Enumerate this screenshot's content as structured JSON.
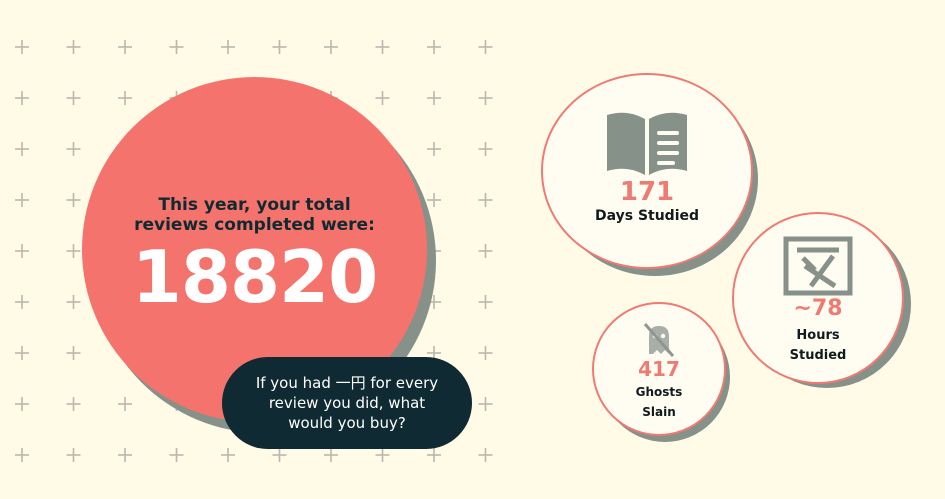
{
  "colors": {
    "background": "#fffbe6",
    "accent": "#f4736d",
    "shadow": "#86918a",
    "dark": "#0f2a32",
    "plus": "#b9b8ad"
  },
  "main": {
    "label": "This year, your total reviews completed were:",
    "total_reviews": "18820",
    "bubble_text": "If you had 一円 for every review you did, what would you buy?"
  },
  "stats": [
    {
      "value": "171",
      "label": "Days Studied",
      "icon": "book-icon"
    },
    {
      "value": "~78",
      "label": "Hours Studied",
      "icon": "kanji-icon"
    },
    {
      "value": "417",
      "label": "Ghosts Slain",
      "icon": "ghost-slashed-icon"
    }
  ]
}
